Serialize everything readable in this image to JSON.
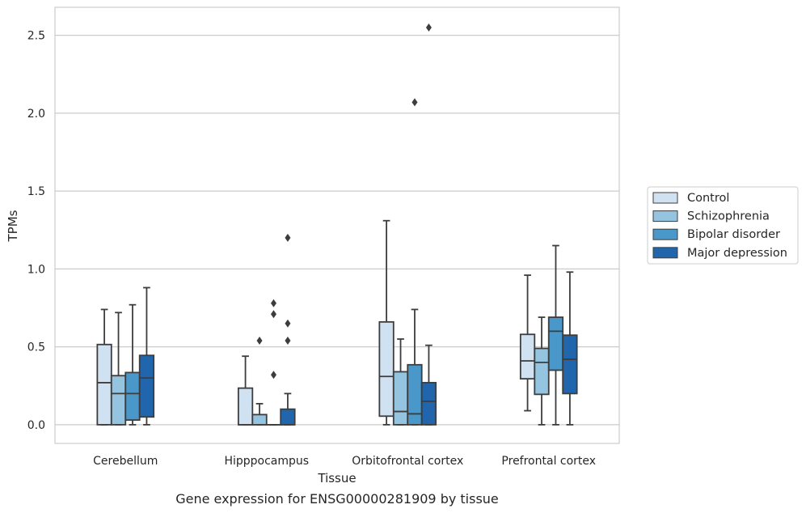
{
  "chart_data": {
    "type": "box",
    "caption": "Gene expression for ENSG00000281909 by tissue",
    "xlabel": "Tissue",
    "ylabel": "TPMs",
    "ylim": [
      -0.12,
      2.68
    ],
    "yticks": [
      0.0,
      0.5,
      1.0,
      1.5,
      2.0,
      2.5
    ],
    "ytick_labels": [
      "0.0",
      "0.5",
      "1.0",
      "1.5",
      "2.0",
      "2.5"
    ],
    "grid": true,
    "legend_position": "right",
    "categories": [
      "Cerebellum",
      "Hipppocampus",
      "Orbitofrontal cortex",
      "Prefrontal cortex"
    ],
    "series": [
      {
        "name": "Control",
        "color": "#d0e1f2",
        "boxes": [
          {
            "min": 0.0,
            "q1": 0.0,
            "median": 0.27,
            "q3": 0.515,
            "max": 0.74,
            "outliers": []
          },
          {
            "min": 0.0,
            "q1": 0.0,
            "median": 0.0,
            "q3": 0.235,
            "max": 0.44,
            "outliers": []
          },
          {
            "min": 0.0,
            "q1": 0.055,
            "median": 0.31,
            "q3": 0.66,
            "max": 1.31,
            "outliers": []
          },
          {
            "min": 0.09,
            "q1": 0.295,
            "median": 0.41,
            "q3": 0.58,
            "max": 0.96,
            "outliers": []
          }
        ]
      },
      {
        "name": "Schizophrenia",
        "color": "#94c4df",
        "boxes": [
          {
            "min": 0.0,
            "q1": 0.0,
            "median": 0.2,
            "q3": 0.315,
            "max": 0.72,
            "outliers": []
          },
          {
            "min": 0.0,
            "q1": 0.0,
            "median": 0.0,
            "q3": 0.065,
            "max": 0.135,
            "outliers": [
              0.54
            ]
          },
          {
            "min": 0.0,
            "q1": 0.0,
            "median": 0.085,
            "q3": 0.34,
            "max": 0.55,
            "outliers": []
          },
          {
            "min": 0.0,
            "q1": 0.195,
            "median": 0.4,
            "q3": 0.49,
            "max": 0.69,
            "outliers": []
          }
        ]
      },
      {
        "name": "Bipolar disorder",
        "color": "#4a98c9",
        "boxes": [
          {
            "min": 0.0,
            "q1": 0.03,
            "median": 0.2,
            "q3": 0.335,
            "max": 0.77,
            "outliers": []
          },
          {
            "min": 0.0,
            "q1": 0.0,
            "median": 0.0,
            "q3": 0.0,
            "max": 0.0,
            "outliers": [
              0.78,
              0.71,
              0.32
            ]
          },
          {
            "min": 0.0,
            "q1": 0.0,
            "median": 0.07,
            "q3": 0.385,
            "max": 0.74,
            "outliers": [
              2.07
            ]
          },
          {
            "min": 0.0,
            "q1": 0.35,
            "median": 0.6,
            "q3": 0.69,
            "max": 1.15,
            "outliers": []
          }
        ]
      },
      {
        "name": "Major depression",
        "color": "#2166ac",
        "boxes": [
          {
            "min": 0.0,
            "q1": 0.05,
            "median": 0.3,
            "q3": 0.445,
            "max": 0.88,
            "outliers": []
          },
          {
            "min": 0.0,
            "q1": 0.0,
            "median": 0.0,
            "q3": 0.1,
            "max": 0.2,
            "outliers": [
              1.2,
              0.65,
              0.54
            ]
          },
          {
            "min": 0.0,
            "q1": 0.0,
            "median": 0.15,
            "q3": 0.27,
            "max": 0.51,
            "outliers": [
              2.55
            ]
          },
          {
            "min": 0.0,
            "q1": 0.2,
            "median": 0.42,
            "q3": 0.575,
            "max": 0.98,
            "outliers": []
          }
        ]
      }
    ]
  }
}
